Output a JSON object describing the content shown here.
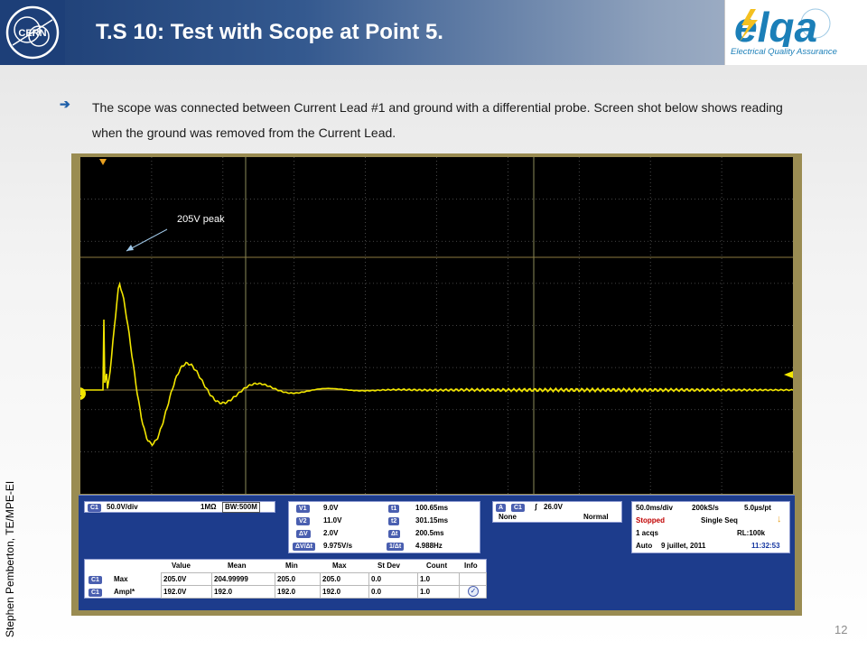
{
  "slide": {
    "title": "T.S 10: Test with Scope at Point 5.",
    "logo_text": "CERN",
    "elqa_letters": "elqa",
    "elqa_tagline": "Electrical Quality Assurance",
    "author": "Stephen Pemberton, TE/MPE-EI",
    "bullet": "The scope was connected between Current Lead #1 and ground with a differential probe. Screen shot below shows reading when the ground was removed from the Current Lead.",
    "page_number": "12"
  },
  "scope": {
    "annotation": "205V peak",
    "channel_marker": "1",
    "channel_tag": "C1",
    "vertical_scale": "50.0V/div",
    "impedance": "1MΩ",
    "bandwidth": "BW:500M",
    "cursors": {
      "v1_label": "V1",
      "v1": "9.0V",
      "v2_label": "V2",
      "v2": "11.0V",
      "dv_label": "ΔV",
      "dv": "2.0V",
      "dvdt_label": "ΔV/Δt",
      "dvdt": "9.975V/s",
      "t1_label": "t1",
      "t1": "100.65ms",
      "t2_label": "t2",
      "t2": "301.15ms",
      "dt_label": "Δt",
      "dt": "200.5ms",
      "inv_label": "1/Δt",
      "inv": "4.988Hz"
    },
    "trigger": {
      "mode_tag": "A",
      "source": "C1",
      "slope_symbol": "ʃ",
      "level": "26.0V",
      "coupling": "None",
      "sweep": "Normal"
    },
    "acquisition": {
      "timebase": "50.0ms/div",
      "sample_rate": "200kS/s",
      "resolution": "5.0µs/pt",
      "status": "Stopped",
      "mode": "Single Seq",
      "acqs": "1 acqs",
      "record_length": "RL:100k",
      "auto": "Auto",
      "date": "9 juillet, 2011",
      "time": "11:32:53"
    },
    "measurements": {
      "headers": [
        "Value",
        "Mean",
        "Min",
        "Max",
        "St Dev",
        "Count",
        "Info"
      ],
      "rows": [
        {
          "tag": "C1",
          "name": "Max",
          "values": [
            "205.0V",
            "204.99999",
            "205.0",
            "205.0",
            "0.0",
            "1.0"
          ]
        },
        {
          "tag": "C1",
          "name": "Ampl*",
          "values": [
            "192.0V",
            "192.0",
            "192.0",
            "192.0",
            "0.0",
            "1.0"
          ]
        }
      ]
    }
  }
}
